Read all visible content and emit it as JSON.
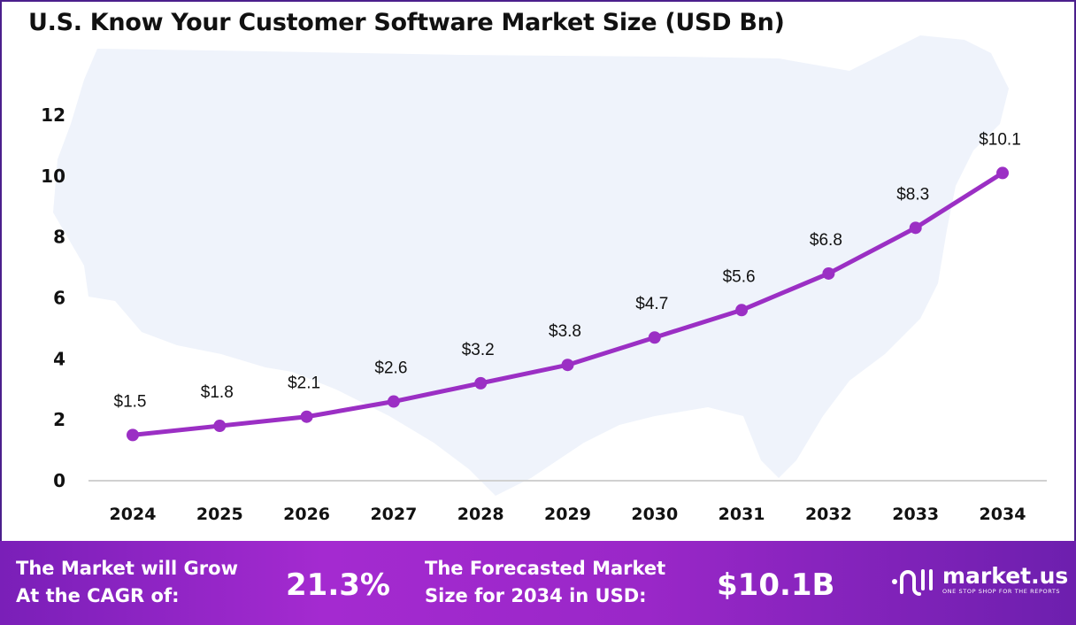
{
  "title": "U.S. Know Your Customer Software Market Size (USD Bn)",
  "chart_data": {
    "type": "line",
    "title": "U.S. Know Your Customer Software Market Size (USD Bn)",
    "categories": [
      "2024",
      "2025",
      "2026",
      "2027",
      "2028",
      "2029",
      "2030",
      "2031",
      "2032",
      "2033",
      "2034"
    ],
    "values": [
      1.5,
      1.8,
      2.1,
      2.6,
      3.2,
      3.8,
      4.7,
      5.6,
      6.8,
      8.3,
      10.1
    ],
    "data_labels": [
      "$1.5",
      "$1.8",
      "$2.1",
      "$2.6",
      "$3.2",
      "$3.8",
      "$4.7",
      "$5.6",
      "$6.8",
      "$8.3",
      "$10.1"
    ],
    "yticks": [
      "0",
      "2",
      "4",
      "6",
      "8",
      "10",
      "12"
    ],
    "ylim": [
      0,
      12
    ],
    "xlabel": "",
    "ylabel": "",
    "grid": false,
    "line_color": "#9b2fc4",
    "background": "U.S. map silhouette"
  },
  "footer": {
    "cagr_label_line1": "The Market will Grow",
    "cagr_label_line2": "At the CAGR of:",
    "cagr_value": "21.3%",
    "forecast_label_line1": "The Forecasted Market",
    "forecast_label_line2": "Size for 2034 in USD:",
    "forecast_value": "$10.1B",
    "logo_name": "market.us",
    "logo_tagline": "ONE STOP SHOP FOR THE REPORTS"
  }
}
